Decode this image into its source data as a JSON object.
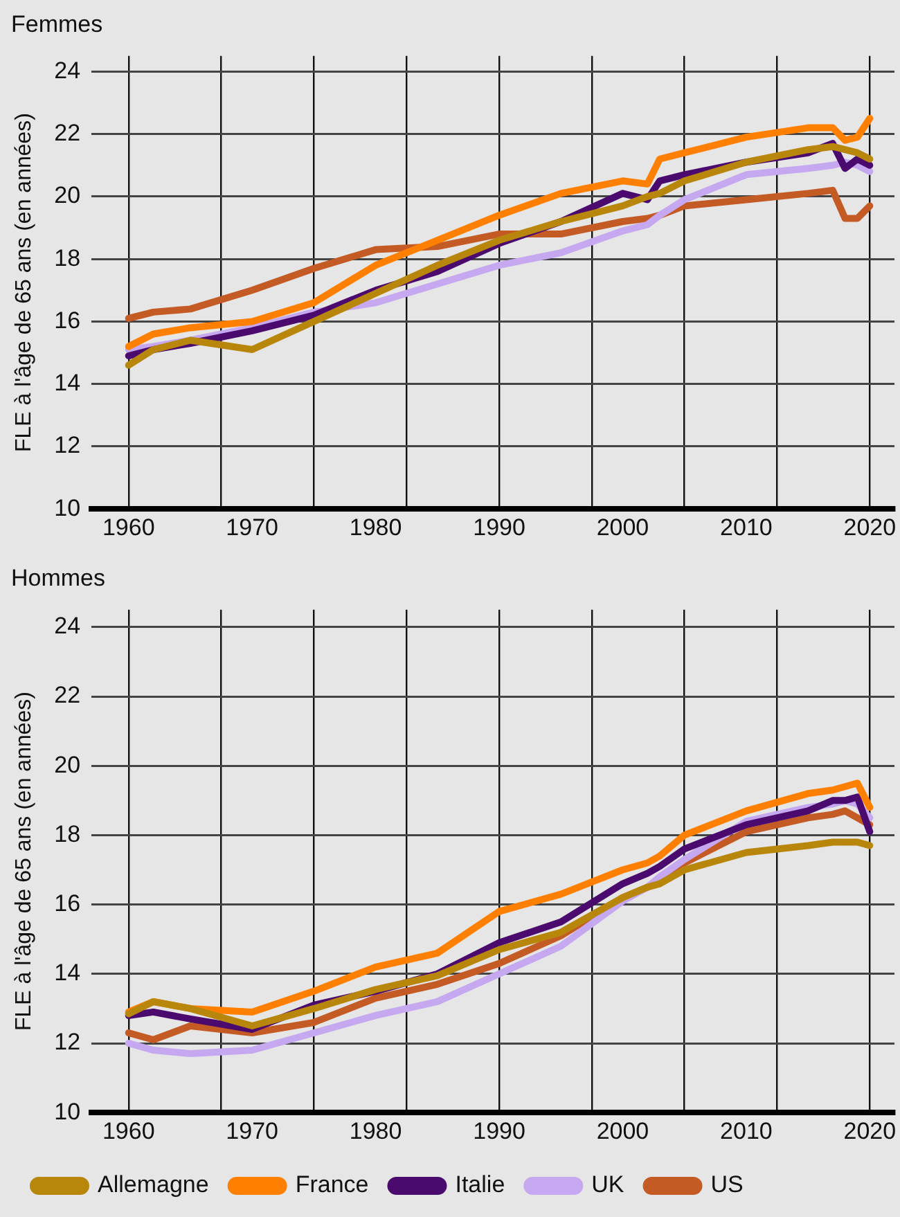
{
  "chart_data": [
    {
      "type": "line",
      "title": "Femmes",
      "ylabel": "FLE à l'âge de 65 ans (en années)",
      "x": [
        1960,
        1962,
        1965,
        1970,
        1975,
        1980,
        1985,
        1990,
        1995,
        2000,
        2002,
        2003,
        2005,
        2010,
        2015,
        2017,
        2018,
        2019,
        2020
      ],
      "xlim": [
        1957,
        2022
      ],
      "xticks": [
        1960,
        1970,
        1980,
        1990,
        2000,
        2010,
        2020,
        {
          "value": 1960,
          "label": null
        },
        {
          "value": 1967.5,
          "label": null
        },
        {
          "value": 1975,
          "label": null
        },
        {
          "value": 1982.5,
          "label": null
        },
        {
          "value": 1990,
          "label": null
        },
        {
          "value": 1997.5,
          "label": null
        },
        {
          "value": 2005,
          "label": null
        },
        {
          "value": 2012.5,
          "label": null
        },
        {
          "value": 2020,
          "label": null
        }
      ],
      "ylim": [
        10,
        24.5
      ],
      "yticks": [
        10,
        12,
        14,
        16,
        18,
        20,
        22,
        24
      ],
      "grid": true,
      "marker": "none",
      "line_style": "solid",
      "series": [
        {
          "color": "#b8860b",
          "values": [
            14.6,
            15.1,
            15.4,
            15.1,
            16.0,
            16.9,
            17.8,
            18.6,
            19.2,
            19.7,
            20.0,
            20.1,
            20.5,
            21.1,
            21.5,
            21.6,
            21.5,
            21.4,
            21.2
          ]
        },
        {
          "color": "#ff8000",
          "values": [
            15.2,
            15.6,
            15.8,
            16.0,
            16.6,
            17.8,
            18.6,
            19.4,
            20.1,
            20.5,
            20.4,
            21.2,
            21.4,
            21.9,
            22.2,
            22.2,
            21.8,
            21.9,
            22.5
          ]
        },
        {
          "color": "#4b0a6e",
          "values": [
            14.9,
            15.1,
            15.3,
            15.7,
            16.2,
            17.0,
            17.6,
            18.5,
            19.2,
            20.1,
            19.9,
            20.5,
            20.7,
            21.1,
            21.4,
            21.7,
            20.9,
            21.2,
            21.0
          ]
        },
        {
          "color": "#c5a8f0",
          "values": [
            15.1,
            15.2,
            15.4,
            15.8,
            16.3,
            16.6,
            17.2,
            17.8,
            18.2,
            18.9,
            19.1,
            19.4,
            19.9,
            20.7,
            20.9,
            21.0,
            21.1,
            21.0,
            20.8
          ]
        },
        {
          "color": "#c45a24",
          "values": [
            16.1,
            16.3,
            16.4,
            17.0,
            17.7,
            18.3,
            18.4,
            18.8,
            18.8,
            19.2,
            19.3,
            19.4,
            19.7,
            19.9,
            20.1,
            20.2,
            19.3,
            19.3,
            19.7
          ]
        }
      ]
    },
    {
      "type": "line",
      "title": "Hommes",
      "ylabel": "FLE à l'âge de 65 ans (en années)",
      "legend": "bottom",
      "x": [
        1960,
        1962,
        1965,
        1970,
        1975,
        1980,
        1985,
        1990,
        1995,
        2000,
        2002,
        2003,
        2005,
        2010,
        2015,
        2017,
        2018,
        2019,
        2020
      ],
      "xlim": [
        1957,
        2022
      ],
      "xticks": [
        1960,
        1970,
        1980,
        1990,
        2000,
        2010,
        2020,
        {
          "value": 1960,
          "label": null
        },
        {
          "value": 1967.5,
          "label": null
        },
        {
          "value": 1975,
          "label": null
        },
        {
          "value": 1982.5,
          "label": null
        },
        {
          "value": 1990,
          "label": null
        },
        {
          "value": 1997.5,
          "label": null
        },
        {
          "value": 2005,
          "label": null
        },
        {
          "value": 2012.5,
          "label": null
        },
        {
          "value": 2020,
          "label": null
        }
      ],
      "ylim": [
        10,
        24.5
      ],
      "yticks": [
        10,
        12,
        14,
        16,
        18,
        20,
        22,
        24
      ],
      "grid": true,
      "marker": "none",
      "line_style": "solid",
      "series": [
        {
          "name": "Allemagne",
          "color": "#b8860b",
          "values": [
            12.85,
            13.2,
            13.0,
            12.5,
            13.0,
            13.55,
            13.95,
            14.7,
            15.2,
            16.2,
            16.5,
            16.6,
            17.0,
            17.5,
            17.7,
            17.8,
            17.8,
            17.8,
            17.7
          ]
        },
        {
          "name": "France",
          "color": "#ff8000",
          "values": [
            12.9,
            13.2,
            13.0,
            12.9,
            13.5,
            14.2,
            14.6,
            15.8,
            16.3,
            17.0,
            17.2,
            17.4,
            18.0,
            18.7,
            19.2,
            19.3,
            19.4,
            19.5,
            18.8
          ]
        },
        {
          "name": "Italie",
          "color": "#4b0a6e",
          "values": [
            12.8,
            12.9,
            12.7,
            12.4,
            13.1,
            13.5,
            14.0,
            14.9,
            15.5,
            16.6,
            16.9,
            17.1,
            17.6,
            18.3,
            18.7,
            19.0,
            19.0,
            19.1,
            18.1
          ]
        },
        {
          "name": "UK",
          "color": "#c5a8f0",
          "values": [
            12.0,
            11.8,
            11.7,
            11.8,
            12.3,
            12.8,
            13.2,
            14.0,
            14.8,
            16.1,
            16.5,
            16.8,
            17.3,
            18.4,
            18.8,
            18.9,
            19.0,
            18.9,
            18.5
          ]
        },
        {
          "name": "US",
          "color": "#c45a24",
          "values": [
            12.3,
            12.1,
            12.5,
            12.3,
            12.6,
            13.3,
            13.7,
            14.3,
            15.1,
            16.2,
            16.5,
            16.7,
            17.2,
            18.1,
            18.5,
            18.6,
            18.7,
            18.5,
            18.3
          ]
        }
      ]
    }
  ]
}
